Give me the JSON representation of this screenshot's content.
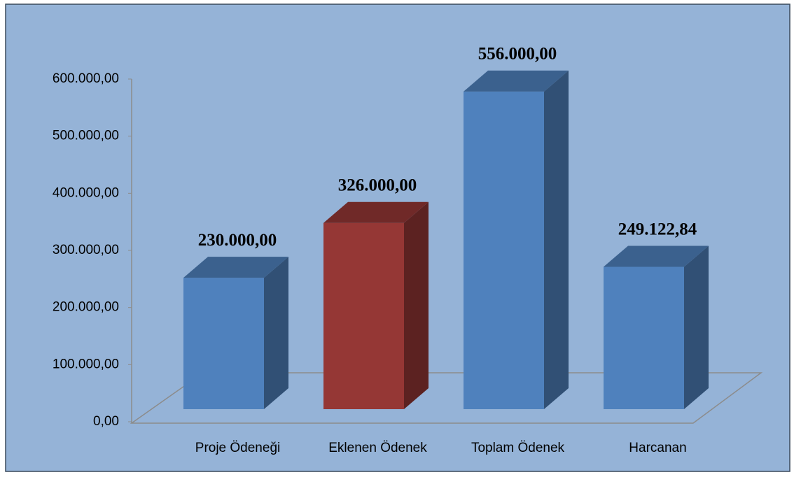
{
  "chart_data": {
    "type": "bar3d",
    "categories": [
      "Proje Ödeneği",
      "Eklenen Ödenek",
      "Toplam Ödenek",
      "Harcanan"
    ],
    "values": [
      230000,
      326000,
      556000,
      249122.84
    ],
    "value_labels": [
      "230.000,00",
      "326.000,00",
      "556.000,00",
      "249.122,84"
    ],
    "colors": [
      "#4f81bd",
      "#953735",
      "#4f81bd",
      "#4f81bd"
    ],
    "ylim": [
      0,
      600000
    ],
    "yticks": [
      {
        "value": 0,
        "label": "0,00"
      },
      {
        "value": 100000,
        "label": "100.000,00"
      },
      {
        "value": 200000,
        "label": "200.000,00"
      },
      {
        "value": 300000,
        "label": "300.000,00"
      },
      {
        "value": 400000,
        "label": "400.000,00"
      },
      {
        "value": 500000,
        "label": "500.000,00"
      },
      {
        "value": 600000,
        "label": "600.000,00"
      }
    ]
  }
}
